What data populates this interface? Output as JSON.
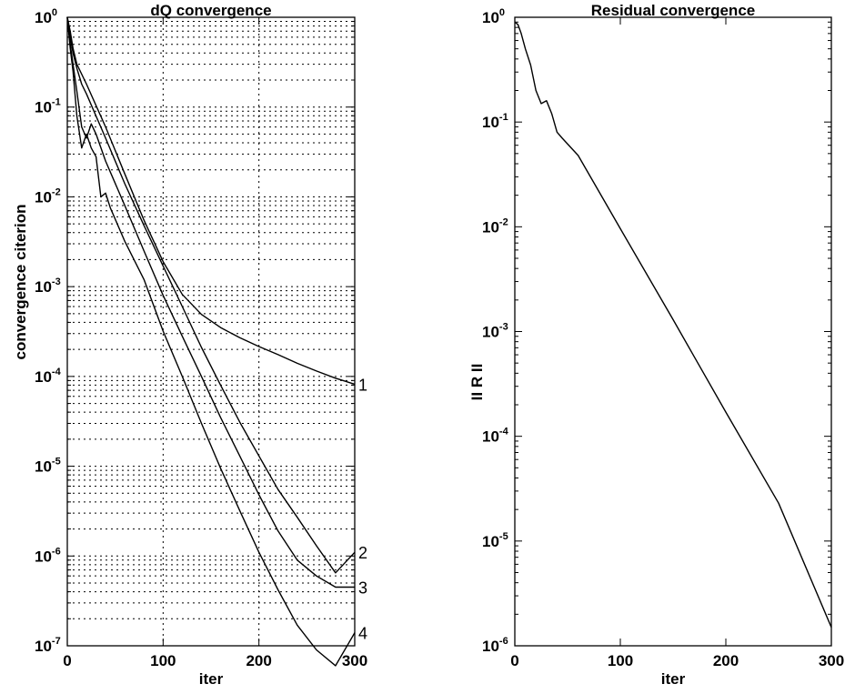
{
  "chart_data": [
    {
      "type": "line",
      "title": "dQ  convergence",
      "xlabel": "iter",
      "ylabel": "convergence  citerion",
      "xlim": [
        0,
        300
      ],
      "ylim": [
        1e-07,
        1
      ],
      "yscale": "log",
      "grid": true,
      "minor_grid": true,
      "x_ticks": [
        "0",
        "100",
        "200",
        "300"
      ],
      "y_ticks": [
        {
          "base": "10",
          "exp": "-7"
        },
        {
          "base": "10",
          "exp": "-6"
        },
        {
          "base": "10",
          "exp": "-5"
        },
        {
          "base": "10",
          "exp": "-4"
        },
        {
          "base": "10",
          "exp": "-3"
        },
        {
          "base": "10",
          "exp": "-2"
        },
        {
          "base": "10",
          "exp": "-1"
        },
        {
          "base": "10",
          "exp": "0"
        }
      ],
      "series": [
        {
          "name": "1",
          "x": [
            0,
            3,
            6,
            10,
            20,
            40,
            60,
            80,
            100,
            120,
            140,
            160,
            180,
            200,
            220,
            240,
            260,
            280,
            300
          ],
          "y": [
            1,
            0.7,
            0.45,
            0.3,
            0.18,
            0.06,
            0.018,
            0.0055,
            0.0019,
            0.00082,
            0.00049,
            0.00035,
            0.00027,
            0.000215,
            0.000175,
            0.00014,
            0.000115,
            9.55e-05,
            8.2e-05
          ]
        },
        {
          "name": "2",
          "x": [
            0,
            3,
            6,
            10,
            15,
            20,
            40,
            60,
            80,
            100,
            120,
            140,
            160,
            180,
            200,
            220,
            240,
            260,
            280,
            300
          ],
          "y": [
            1,
            0.6,
            0.4,
            0.27,
            0.18,
            0.14,
            0.045,
            0.014,
            0.0048,
            0.0017,
            0.0006,
            0.00021,
            8e-05,
            3.1e-05,
            1.3e-05,
            5.5e-06,
            2.7e-06,
            1.3e-06,
            6.5e-07,
            1.1e-06
          ]
        },
        {
          "name": "3",
          "x": [
            0,
            3,
            6,
            10,
            15,
            20,
            25,
            30,
            40,
            60,
            80,
            100,
            120,
            140,
            160,
            180,
            200,
            220,
            240,
            260,
            280,
            300
          ],
          "y": [
            1,
            0.5,
            0.3,
            0.15,
            0.06,
            0.045,
            0.065,
            0.05,
            0.025,
            0.008,
            0.0025,
            0.0008,
            0.00028,
            0.0001,
            3.5e-05,
            1.3e-05,
            4.8e-06,
            1.9e-06,
            9e-07,
            6e-07,
            4.5e-07,
            4.5e-07
          ]
        },
        {
          "name": "4",
          "x": [
            0,
            3,
            6,
            10,
            15,
            20,
            25,
            30,
            35,
            40,
            45,
            60,
            80,
            100,
            120,
            140,
            160,
            180,
            200,
            220,
            240,
            260,
            280,
            300
          ],
          "y": [
            1,
            0.45,
            0.25,
            0.08,
            0.035,
            0.05,
            0.035,
            0.028,
            0.01,
            0.011,
            0.0075,
            0.0032,
            0.0012,
            0.00032,
            0.0001,
            3e-05,
            9.5e-06,
            3.2e-06,
            1.1e-06,
            4.2e-07,
            1.7e-07,
            9e-08,
            6e-08,
            1.4e-07
          ]
        }
      ]
    },
    {
      "type": "line",
      "title": "Residual convergence",
      "xlabel": "iter",
      "ylabel": "II R II",
      "xlim": [
        0,
        300
      ],
      "ylim": [
        1e-06,
        1
      ],
      "yscale": "log",
      "grid": false,
      "x_ticks": [
        "0",
        "100",
        "200",
        "300"
      ],
      "y_ticks": [
        {
          "base": "10",
          "exp": "-6"
        },
        {
          "base": "10",
          "exp": "-5"
        },
        {
          "base": "10",
          "exp": "-4"
        },
        {
          "base": "10",
          "exp": "-3"
        },
        {
          "base": "10",
          "exp": "-2"
        },
        {
          "base": "10",
          "exp": "-1"
        },
        {
          "base": "10",
          "exp": "0"
        }
      ],
      "series": [
        {
          "x": [
            0,
            3,
            6,
            10,
            15,
            20,
            25,
            30,
            35,
            40,
            45,
            60,
            100,
            150,
            200,
            250,
            300
          ],
          "y": [
            0.9,
            0.85,
            0.7,
            0.5,
            0.35,
            0.2,
            0.15,
            0.16,
            0.12,
            0.08,
            0.07,
            0.048,
            0.0096,
            0.0013,
            0.00017,
            2.3e-05,
            1.5e-06
          ]
        }
      ]
    }
  ]
}
